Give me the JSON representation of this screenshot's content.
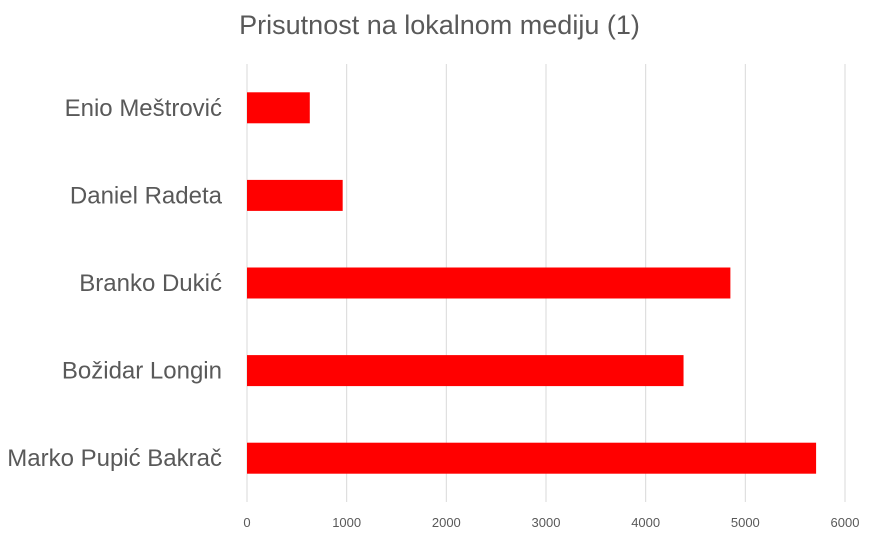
{
  "chart_data": {
    "type": "bar",
    "orientation": "horizontal",
    "title": "Prisutnost na lokalnom mediju (1)",
    "xlabel": "",
    "ylabel": "",
    "categories": [
      "Enio Meštrović",
      "Daniel Radeta",
      "Branko Dukić",
      "Božidar Longin",
      "Marko Pupić Bakrač"
    ],
    "values": [
      630,
      960,
      4850,
      4380,
      5710
    ],
    "xlim": [
      0,
      6000
    ],
    "ticks": [
      0,
      1000,
      2000,
      3000,
      4000,
      5000,
      6000
    ],
    "grid": true,
    "legend": "none",
    "bar_color": "#ff0000",
    "grid_color": "#d9d9d9",
    "text_color": "#595959"
  }
}
